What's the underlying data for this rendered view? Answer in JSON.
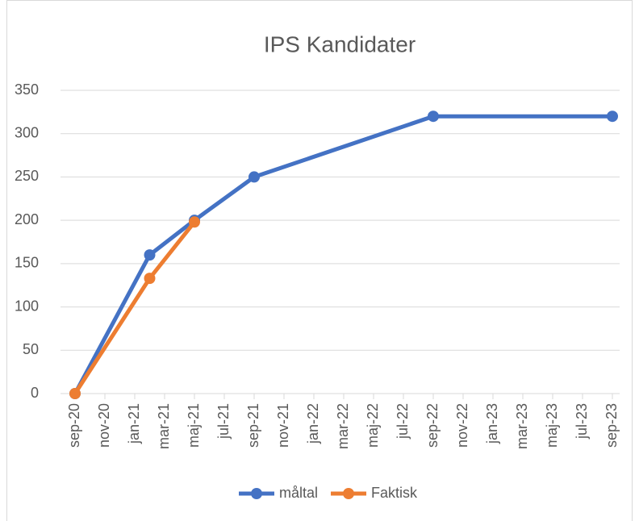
{
  "chart_data": {
    "type": "line",
    "title": "IPS Kandidater",
    "x": [
      "2020-09",
      "2021-02",
      "2021-05",
      "2021-09",
      "2022-09",
      "2023-09"
    ],
    "series": [
      {
        "name": "måltal",
        "color": "#4472c4",
        "values": [
          0,
          160,
          200,
          250,
          320,
          320
        ]
      },
      {
        "name": "Faktisk",
        "color": "#ed7d31",
        "values": [
          0,
          133,
          198,
          null,
          null,
          null
        ]
      }
    ],
    "xlim": [
      "2020-09",
      "2023-09"
    ],
    "xticks": [
      {
        "value": "2020-09",
        "label": "sep-20"
      },
      {
        "value": "2020-11",
        "label": "nov-20"
      },
      {
        "value": "2021-01",
        "label": "jan-21"
      },
      {
        "value": "2021-03",
        "label": "mar-21"
      },
      {
        "value": "2021-05",
        "label": "maj-21"
      },
      {
        "value": "2021-07",
        "label": "jul-21"
      },
      {
        "value": "2021-09",
        "label": "sep-21"
      },
      {
        "value": "2021-11",
        "label": "nov-21"
      },
      {
        "value": "2022-01",
        "label": "jan-22"
      },
      {
        "value": "2022-03",
        "label": "mar-22"
      },
      {
        "value": "2022-05",
        "label": "maj-22"
      },
      {
        "value": "2022-07",
        "label": "jul-22"
      },
      {
        "value": "2022-09",
        "label": "sep-22"
      },
      {
        "value": "2022-11",
        "label": "nov-22"
      },
      {
        "value": "2023-01",
        "label": "jan-23"
      },
      {
        "value": "2023-03",
        "label": "mar-23"
      },
      {
        "value": "2023-05",
        "label": "maj-23"
      },
      {
        "value": "2023-07",
        "label": "jul-23"
      },
      {
        "value": "2023-09",
        "label": "sep-23"
      }
    ],
    "ylim": [
      0,
      350
    ],
    "yticks": [
      0,
      50,
      100,
      150,
      200,
      250,
      300,
      350
    ],
    "grid": true,
    "legend": "bottom"
  }
}
